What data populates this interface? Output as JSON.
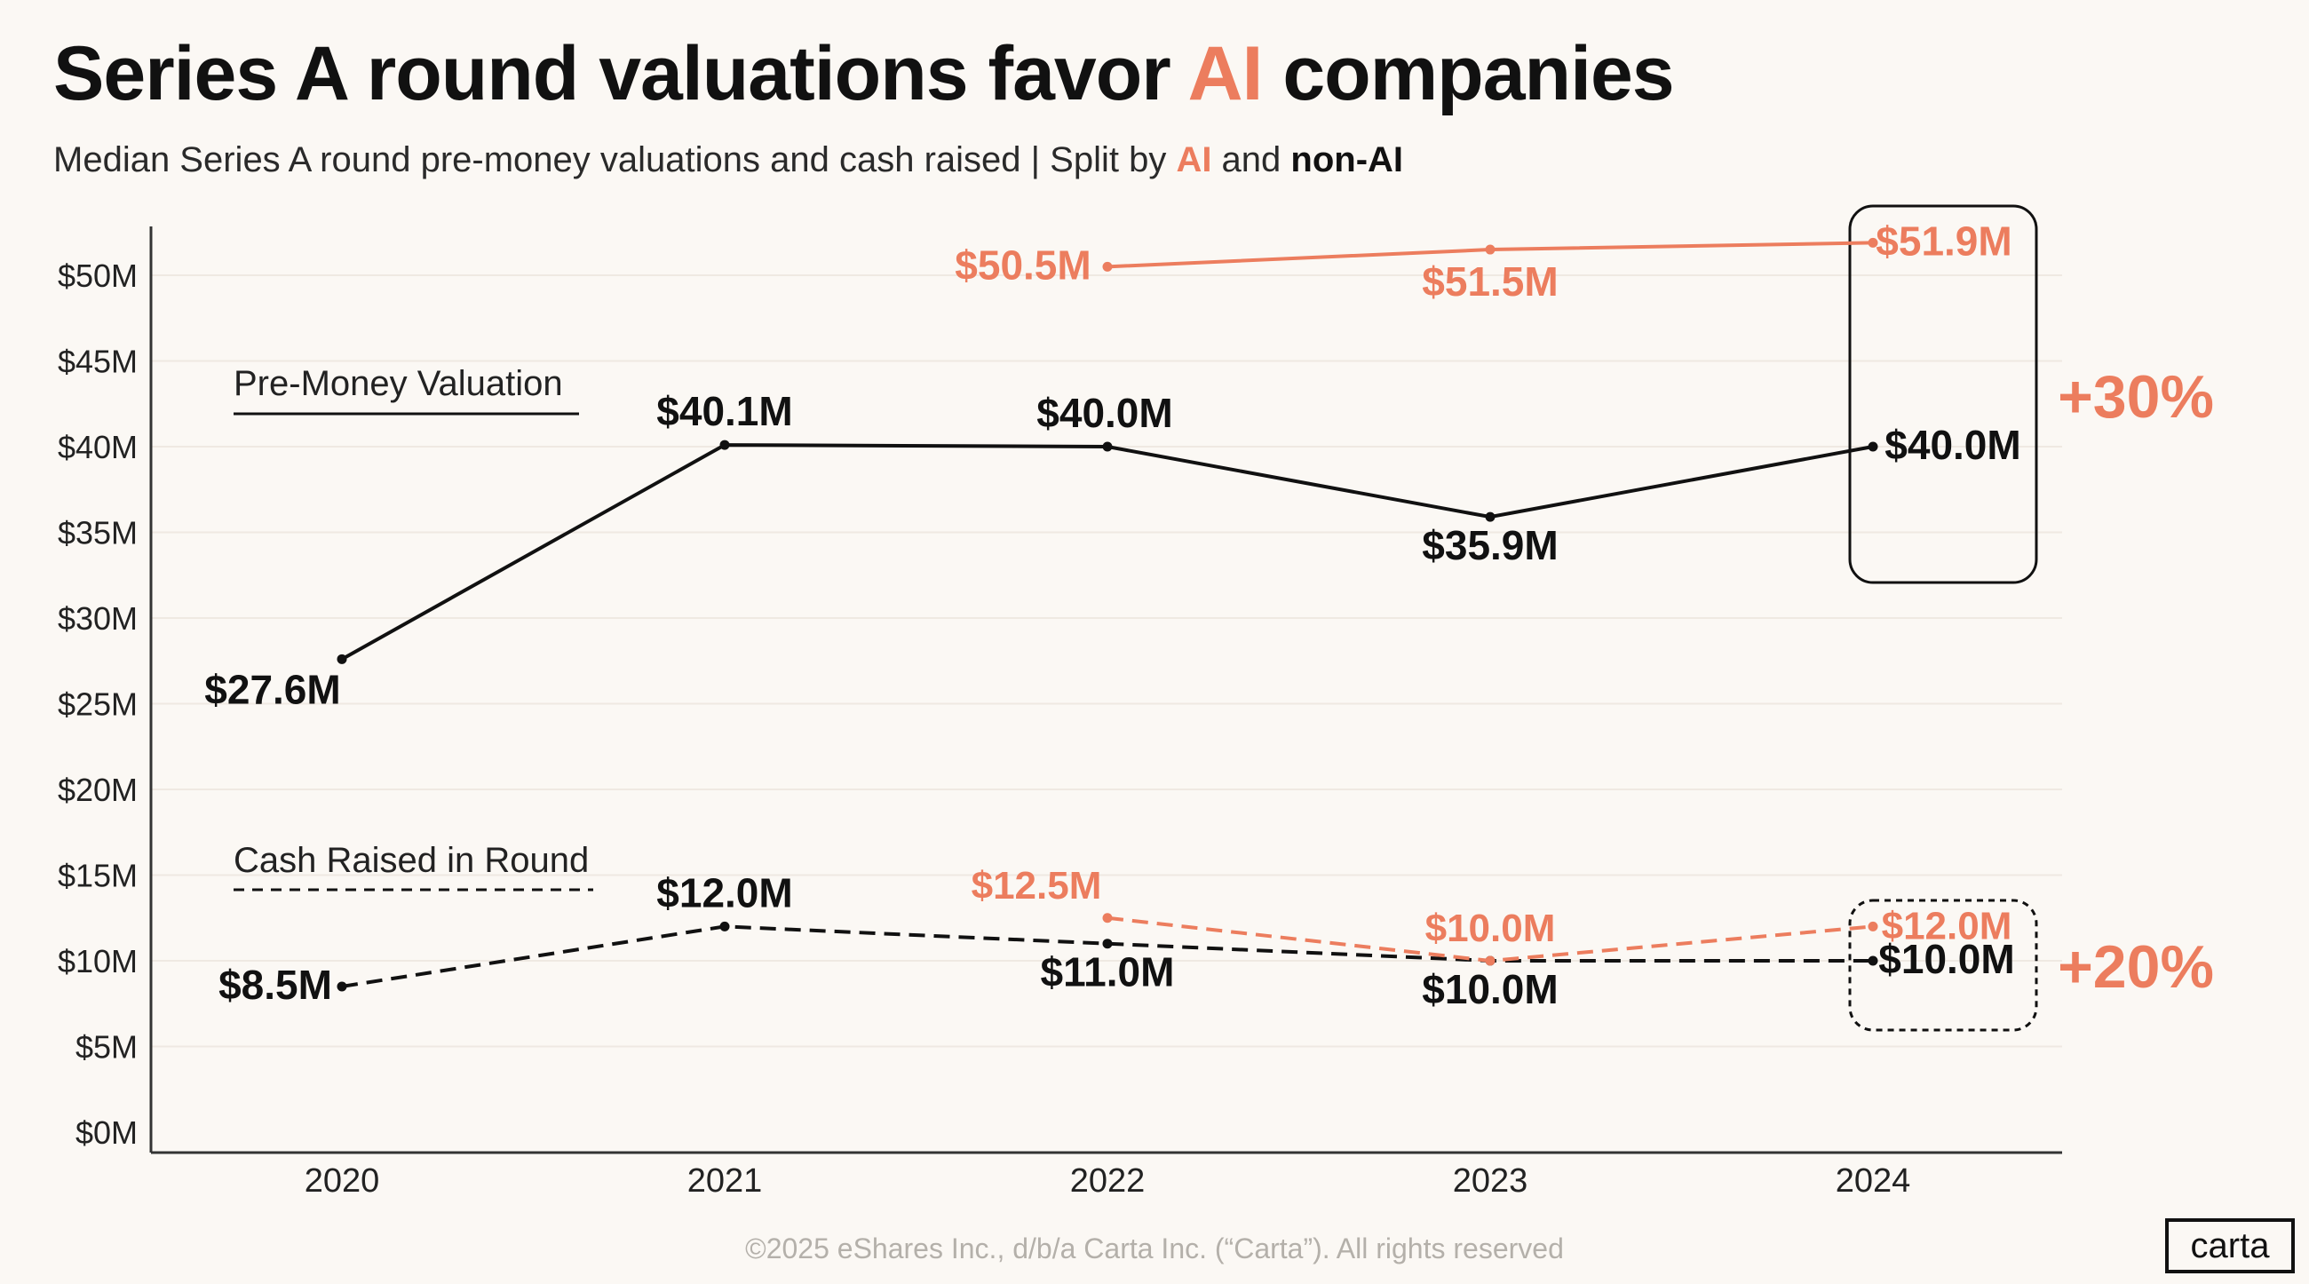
{
  "header": {
    "title_part1": "Series A round valuations favor ",
    "title_accent": "AI",
    "title_part2": " companies",
    "subtitle_part1": "Median Series A round pre-money valuations and cash raised | Split by ",
    "subtitle_ai": "AI",
    "subtitle_and": " and ",
    "subtitle_nonai": "non-AI"
  },
  "chart_data": {
    "type": "line",
    "x": [
      "2020",
      "2021",
      "2022",
      "2023",
      "2024"
    ],
    "y_ticks": [
      "$0M",
      "$5M",
      "$10M",
      "$15M",
      "$20M",
      "$25M",
      "$30M",
      "$35M",
      "$40M",
      "$45M",
      "$50M"
    ],
    "ylim": [
      0,
      55
    ],
    "grid": true,
    "series": [
      {
        "key": "val_nonai",
        "group": "Pre-Money Valuation",
        "segment": "non-AI",
        "style": "solid",
        "color": "#111111",
        "values": [
          27.6,
          40.1,
          40.0,
          35.9,
          40.0
        ],
        "labels": [
          "$27.6M",
          "$40.1M",
          "$40.0M",
          "$35.9M",
          "$40.0M"
        ]
      },
      {
        "key": "val_ai",
        "group": "Pre-Money Valuation",
        "segment": "AI",
        "style": "solid",
        "color": "#ec7d5e",
        "values": [
          null,
          null,
          50.5,
          51.5,
          51.9
        ],
        "labels": [
          null,
          null,
          "$50.5M",
          "$51.5M",
          "$51.9M"
        ]
      },
      {
        "key": "cash_nonai",
        "group": "Cash Raised in Round",
        "segment": "non-AI",
        "style": "dashed",
        "color": "#111111",
        "values": [
          8.5,
          12.0,
          11.0,
          10.0,
          10.0
        ],
        "labels": [
          "$8.5M",
          "$12.0M",
          "$11.0M",
          "$10.0M",
          "$10.0M"
        ]
      },
      {
        "key": "cash_ai",
        "group": "Cash Raised in Round",
        "segment": "AI",
        "style": "dashed",
        "color": "#ec7d5e",
        "values": [
          null,
          null,
          12.5,
          10.0,
          12.0
        ],
        "labels": [
          null,
          null,
          "$12.5M",
          "$10.0M",
          "$12.0M"
        ]
      }
    ],
    "legend": [
      {
        "label": "Pre-Money Valuation",
        "style": "solid"
      },
      {
        "label": "Cash Raised in Round",
        "style": "dashed"
      }
    ],
    "annotations": [
      {
        "text": "+30%",
        "target": "Pre-Money Valuation 2024",
        "color": "#ec7d5e"
      },
      {
        "text": "+20%",
        "target": "Cash Raised in Round 2024",
        "color": "#ec7d5e"
      }
    ]
  },
  "footer": {
    "copyright": "©2025 eShares Inc., d/b/a Carta Inc. (“Carta”). All rights reserved"
  },
  "brand": {
    "logo": "carta"
  },
  "colors": {
    "accent": "#ec7d5e",
    "ink": "#111111",
    "grid": "#efe9e2",
    "background": "#fbf8f4"
  }
}
